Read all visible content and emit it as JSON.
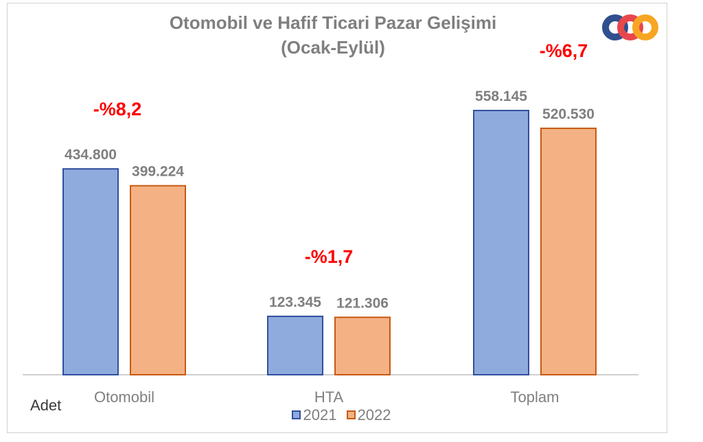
{
  "chart_data": {
    "type": "bar",
    "title": "Otomobil ve Hafif Ticari Pazar Gelişimi",
    "subtitle": "(Ocak-Eylül)",
    "ylabel": "Adet",
    "categories": [
      "Otomobil",
      "HTA",
      "Toplam"
    ],
    "series": [
      {
        "name": "2021",
        "values": [
          434800,
          123345,
          558145
        ],
        "labels": [
          "434.800",
          "123.345",
          "558.145"
        ],
        "color": "#8faadc",
        "border": "#2f4f9f"
      },
      {
        "name": "2022",
        "values": [
          399224,
          121306,
          520530
        ],
        "labels": [
          "399.224",
          "121.306",
          "520.530"
        ],
        "color": "#f4b183",
        "border": "#c55a11"
      }
    ],
    "change_labels": [
      "-%8,2",
      "-%1,7",
      "-%6,7"
    ],
    "ylim": [
      0,
      600000
    ],
    "grid": false,
    "legend": "bottom"
  },
  "logo": {
    "name": "odd-logo",
    "colors": [
      "#2f4f8f",
      "#e8474c",
      "#f6a623"
    ]
  }
}
